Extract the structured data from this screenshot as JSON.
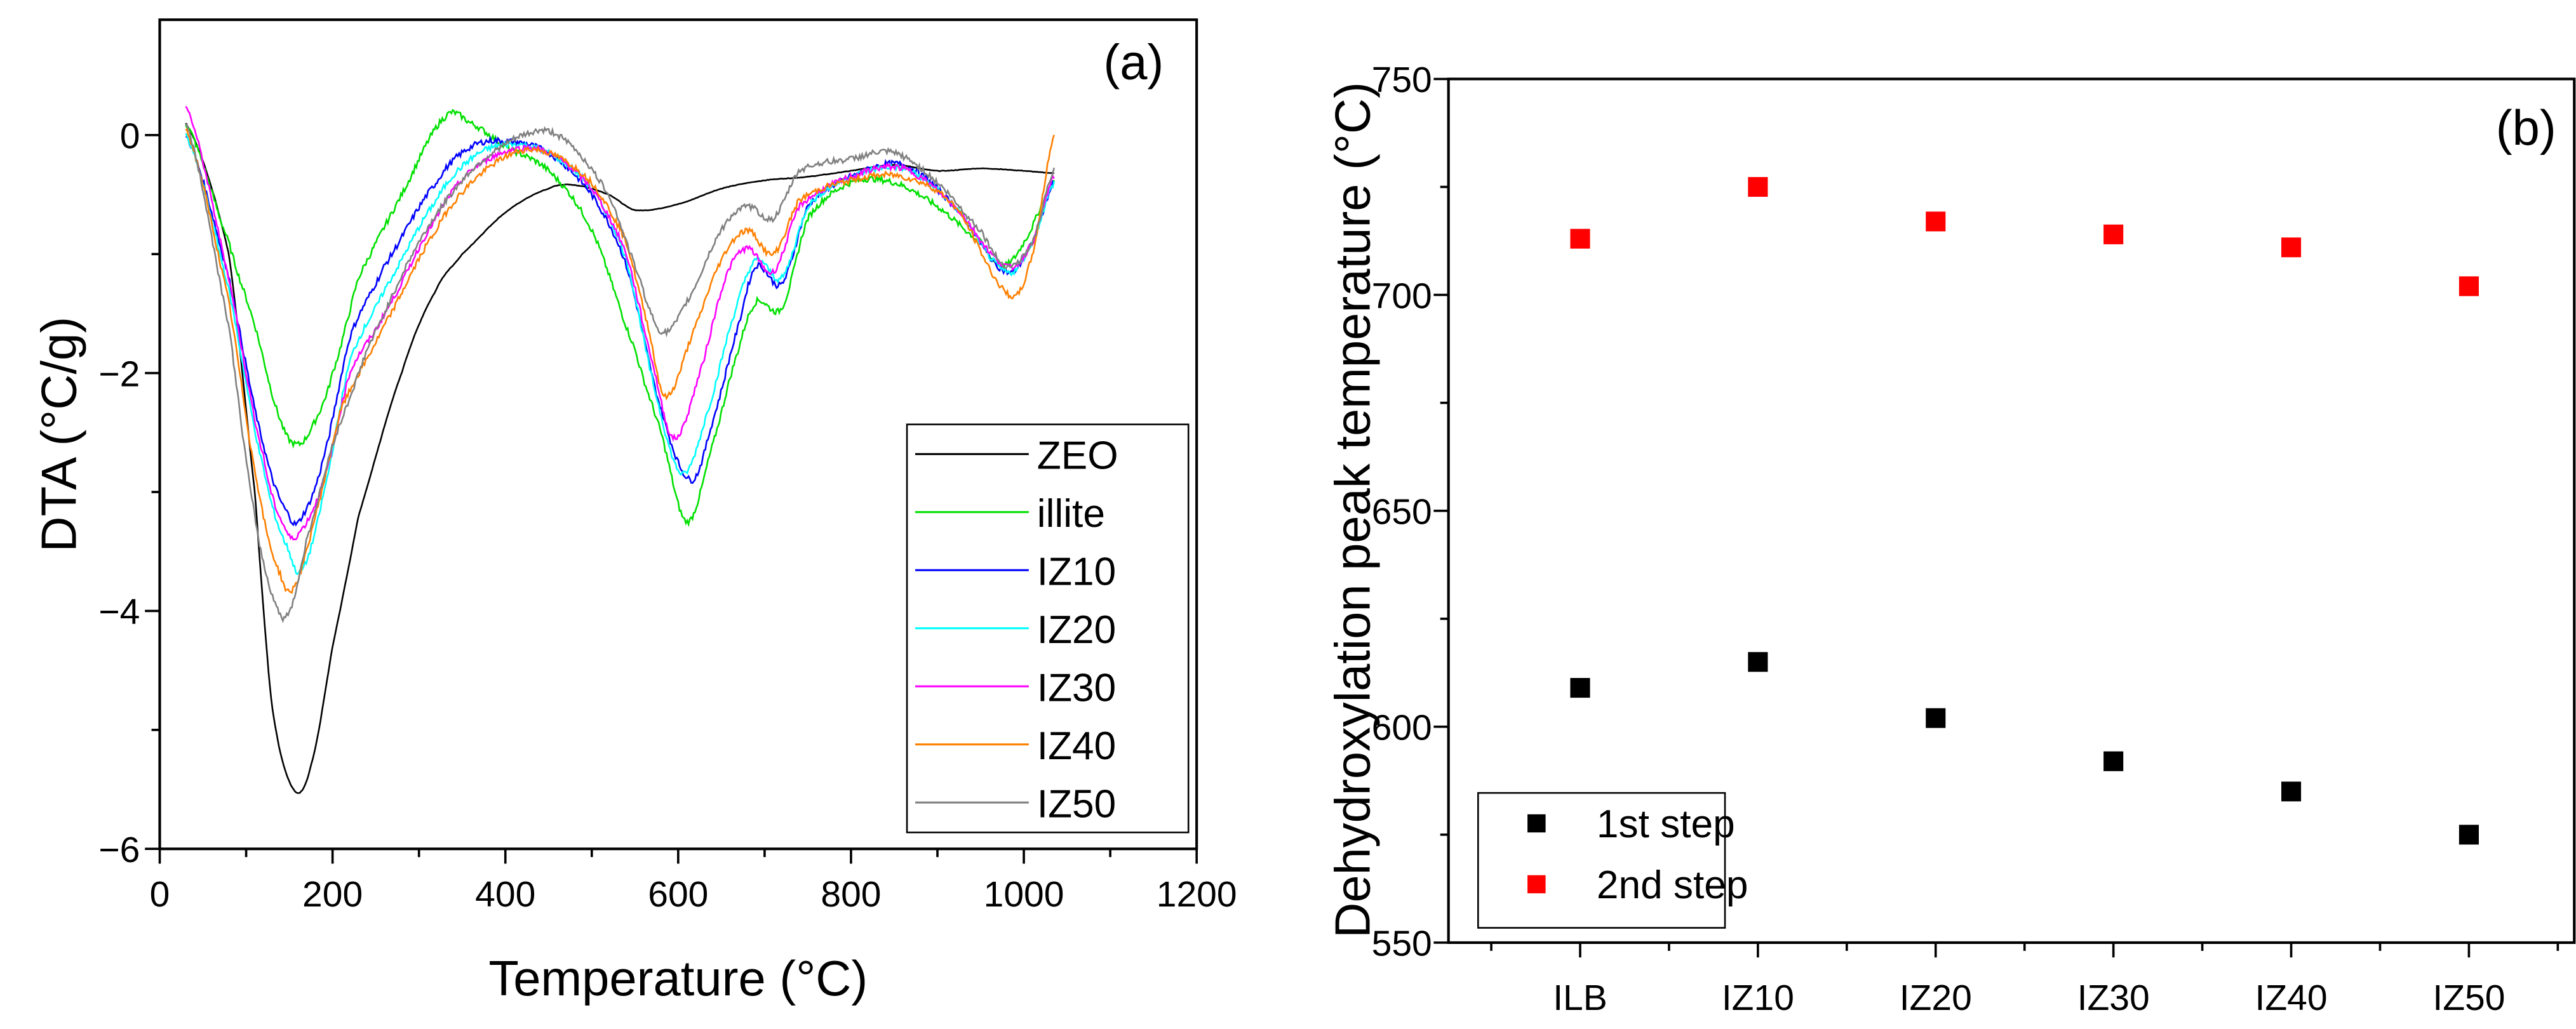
{
  "chart_data": [
    {
      "type": "line",
      "panel_label": "(a)",
      "xlabel": "Temperature (°C)",
      "ylabel": "DTA (°C/g)",
      "xlim": [
        0,
        1200
      ],
      "ylim": [
        -6,
        0.97
      ],
      "xticks": [
        0,
        200,
        400,
        600,
        800,
        1000,
        1200
      ],
      "xtick_labels": [
        "0",
        "200",
        "400",
        "600",
        "800",
        "1000",
        "1200"
      ],
      "yticks": [
        -6,
        -4,
        -2,
        0
      ],
      "ytick_labels": [
        "−6",
        "−4",
        "−2",
        "0"
      ],
      "grid": false,
      "legend_position": "bottom-right",
      "series": [
        {
          "name": "ZEO",
          "color": "#000000",
          "x": [
            30,
            80,
            110,
            130,
            155,
            175,
            200,
            230,
            280,
            320,
            350,
            400,
            450,
            480,
            520,
            550,
            600,
            650,
            700,
            750,
            800,
            850,
            900,
            950,
            1000,
            1035
          ],
          "y": [
            0.1,
            -1.0,
            -3.0,
            -4.8,
            -5.5,
            -5.3,
            -4.3,
            -3.2,
            -2.0,
            -1.3,
            -1.0,
            -0.65,
            -0.45,
            -0.42,
            -0.5,
            -0.63,
            -0.58,
            -0.45,
            -0.38,
            -0.35,
            -0.3,
            -0.25,
            -0.3,
            -0.28,
            -0.3,
            -0.32
          ]
        },
        {
          "name": "illite",
          "color": "#00e000",
          "x": [
            30,
            80,
            110,
            140,
            160,
            180,
            200,
            230,
            280,
            330,
            360,
            400,
            450,
            500,
            550,
            580,
            610,
            640,
            670,
            690,
            720,
            750,
            800,
            850,
            900,
            950,
            975,
            1000,
            1035
          ],
          "y": [
            0.1,
            -0.9,
            -1.6,
            -2.4,
            -2.6,
            -2.4,
            -2.0,
            -1.2,
            -0.5,
            0.15,
            0.1,
            -0.1,
            -0.3,
            -0.8,
            -1.8,
            -2.5,
            -3.25,
            -2.6,
            -1.8,
            -1.4,
            -1.45,
            -0.7,
            -0.4,
            -0.4,
            -0.6,
            -0.9,
            -1.1,
            -0.9,
            -0.4
          ]
        },
        {
          "name": "IZ10",
          "color": "#0000ff",
          "x": [
            30,
            80,
            120,
            150,
            165,
            190,
            220,
            260,
            320,
            360,
            400,
            450,
            500,
            540,
            580,
            615,
            640,
            670,
            690,
            720,
            750,
            800,
            860,
            920,
            980,
            1010,
            1035
          ],
          "y": [
            0.0,
            -1.2,
            -2.6,
            -3.2,
            -3.2,
            -2.7,
            -1.7,
            -1.1,
            -0.4,
            -0.1,
            -0.05,
            -0.15,
            -0.5,
            -1.1,
            -2.3,
            -2.9,
            -2.4,
            -1.6,
            -1.1,
            -1.25,
            -0.6,
            -0.35,
            -0.25,
            -0.6,
            -1.15,
            -0.9,
            -0.4
          ]
        },
        {
          "name": "IZ20",
          "color": "#00ffff",
          "x": [
            30,
            80,
            120,
            150,
            165,
            190,
            220,
            260,
            320,
            360,
            400,
            450,
            500,
            540,
            575,
            605,
            635,
            665,
            690,
            720,
            750,
            800,
            860,
            920,
            980,
            1010,
            1035
          ],
          "y": [
            0.0,
            -1.3,
            -2.8,
            -3.5,
            -3.65,
            -3.0,
            -1.9,
            -1.3,
            -0.55,
            -0.2,
            -0.08,
            -0.15,
            -0.45,
            -1.05,
            -2.2,
            -2.85,
            -2.3,
            -1.5,
            -1.05,
            -1.2,
            -0.6,
            -0.35,
            -0.28,
            -0.6,
            -1.15,
            -0.9,
            -0.4
          ]
        },
        {
          "name": "IZ30",
          "color": "#ff00ff",
          "x": [
            30,
            80,
            120,
            145,
            160,
            190,
            220,
            260,
            320,
            360,
            410,
            450,
            500,
            540,
            570,
            595,
            625,
            655,
            680,
            710,
            740,
            800,
            860,
            920,
            980,
            1010,
            1035
          ],
          "y": [
            0.25,
            -1.2,
            -2.7,
            -3.3,
            -3.35,
            -2.9,
            -2.0,
            -1.5,
            -0.7,
            -0.3,
            -0.12,
            -0.15,
            -0.45,
            -1.0,
            -1.9,
            -2.55,
            -2.0,
            -1.2,
            -0.95,
            -1.15,
            -0.6,
            -0.35,
            -0.28,
            -0.6,
            -1.1,
            -0.9,
            -0.35
          ]
        },
        {
          "name": "IZ40",
          "color": "#ff8000",
          "x": [
            30,
            80,
            115,
            140,
            155,
            180,
            210,
            260,
            320,
            360,
            410,
            450,
            500,
            540,
            565,
            585,
            615,
            650,
            680,
            710,
            740,
            800,
            860,
            920,
            985,
            1010,
            1035
          ],
          "y": [
            0.05,
            -1.4,
            -3.0,
            -3.7,
            -3.8,
            -3.2,
            -2.3,
            -1.6,
            -0.8,
            -0.4,
            -0.15,
            -0.15,
            -0.4,
            -0.9,
            -1.6,
            -2.2,
            -1.7,
            -1.05,
            -0.8,
            -1.0,
            -0.55,
            -0.38,
            -0.35,
            -0.6,
            -1.35,
            -1.0,
            0.0
          ]
        },
        {
          "name": "IZ50",
          "color": "#808080",
          "x": [
            30,
            80,
            110,
            135,
            150,
            170,
            200,
            240,
            300,
            360,
            430,
            470,
            520,
            550,
            580,
            610,
            650,
            680,
            710,
            740,
            800,
            850,
            900,
            950,
            980,
            1010,
            1035
          ],
          "y": [
            0.1,
            -1.6,
            -3.2,
            -3.95,
            -4.0,
            -3.4,
            -2.6,
            -1.8,
            -0.9,
            -0.3,
            0.02,
            -0.05,
            -0.5,
            -1.1,
            -1.65,
            -1.4,
            -0.8,
            -0.6,
            -0.7,
            -0.3,
            -0.2,
            -0.15,
            -0.4,
            -0.8,
            -1.1,
            -0.9,
            -0.3
          ]
        }
      ]
    },
    {
      "type": "scatter",
      "panel_label": "(b)",
      "xlabel": "",
      "ylabel": "Dehydroxylation peak temperature (°C)",
      "categories": [
        "ILB",
        "IZ10",
        "IZ20",
        "IZ30",
        "IZ40",
        "IZ50"
      ],
      "ylim": [
        550,
        750
      ],
      "yticks": [
        550,
        600,
        650,
        700,
        750
      ],
      "ytick_labels": [
        "550",
        "600",
        "650",
        "700",
        "750"
      ],
      "grid": false,
      "legend_position": "bottom-left",
      "series": [
        {
          "name": "1st step",
          "color": "#000000",
          "values": [
            609,
            615,
            602,
            592,
            585,
            575
          ]
        },
        {
          "name": "2nd step",
          "color": "#ff0000",
          "values": [
            713,
            725,
            717,
            714,
            711,
            702
          ]
        }
      ]
    }
  ]
}
